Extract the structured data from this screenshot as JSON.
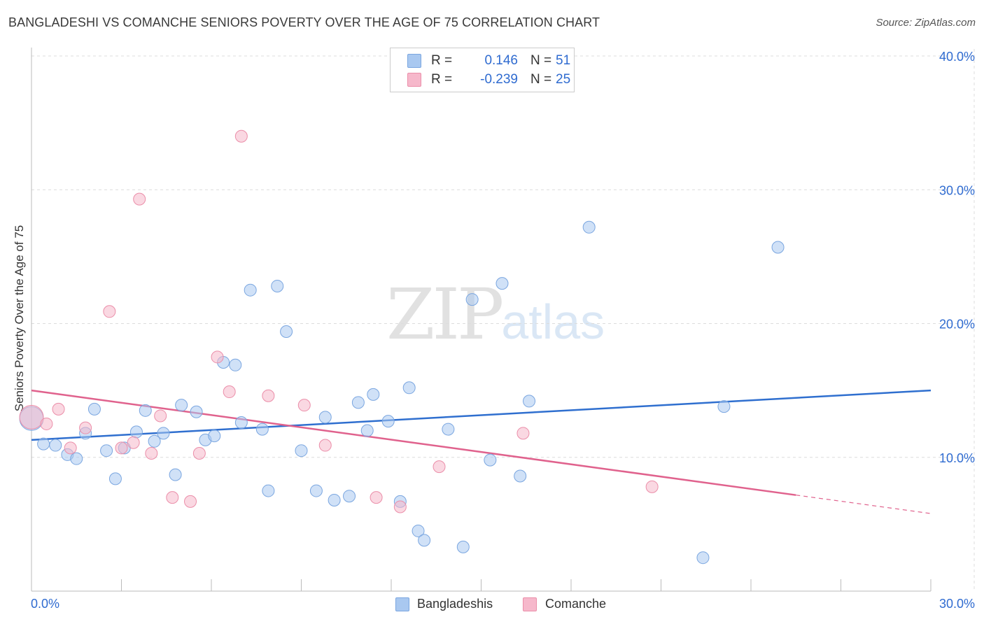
{
  "title": "BANGLADESHI VS COMANCHE SENIORS POVERTY OVER THE AGE OF 75 CORRELATION CHART",
  "source": "Source: ZipAtlas.com",
  "watermark": {
    "zip": "ZIP",
    "atlas": "atlas"
  },
  "stats": [
    {
      "r_label": "R =",
      "r_value": "0.146",
      "n_label": "N =",
      "n_value": "51",
      "color": "#a9c8f0"
    },
    {
      "r_label": "R =",
      "r_value": "-0.239",
      "n_label": "N =",
      "n_value": "25",
      "color": "#f6b8cb"
    }
  ],
  "legend": [
    {
      "label": "Bangladeshis",
      "color": "#a9c8f0"
    },
    {
      "label": "Comanche",
      "color": "#f6b8cb"
    }
  ],
  "chart_data": {
    "type": "scatter",
    "title": "BANGLADESHI VS COMANCHE SENIORS POVERTY OVER THE AGE OF 75 CORRELATION CHART",
    "xlabel": "",
    "ylabel": "Seniors Poverty Over the Age of 75",
    "xlim": [
      0,
      30
    ],
    "ylim": [
      0,
      40
    ],
    "x_tick_labels": [
      "0.0%",
      "30.0%"
    ],
    "y_ticks": [
      10,
      20,
      30,
      40
    ],
    "y_tick_labels": [
      "10.0%",
      "20.0%",
      "30.0%",
      "40.0%"
    ],
    "grid": true,
    "series": [
      {
        "name": "Bangladeshis",
        "color": "#a9c8f0",
        "stroke": "#7aa6e0",
        "line_color": "#2f6fcf",
        "trend": {
          "x0": 0,
          "y0": 11.3,
          "x1": 30,
          "y1": 15.0,
          "dash_from": null
        },
        "points": [
          [
            0.0,
            12.9,
            3
          ],
          [
            0.4,
            11.0,
            1
          ],
          [
            0.8,
            10.9,
            1
          ],
          [
            1.2,
            10.2,
            1
          ],
          [
            1.5,
            9.9,
            1
          ],
          [
            1.8,
            11.8,
            1
          ],
          [
            2.1,
            13.6,
            1
          ],
          [
            2.5,
            10.5,
            1
          ],
          [
            2.8,
            8.4,
            1
          ],
          [
            3.1,
            10.7,
            1
          ],
          [
            3.5,
            11.9,
            1
          ],
          [
            3.8,
            13.5,
            1
          ],
          [
            4.1,
            11.2,
            1
          ],
          [
            4.4,
            11.8,
            1
          ],
          [
            4.8,
            8.7,
            1
          ],
          [
            5.0,
            13.9,
            1
          ],
          [
            5.5,
            13.4,
            1
          ],
          [
            5.8,
            11.3,
            1
          ],
          [
            6.1,
            11.6,
            1
          ],
          [
            6.4,
            17.1,
            1
          ],
          [
            6.8,
            16.9,
            1
          ],
          [
            7.0,
            12.6,
            1
          ],
          [
            7.3,
            22.5,
            1
          ],
          [
            7.7,
            12.1,
            1
          ],
          [
            7.9,
            7.5,
            1
          ],
          [
            8.2,
            22.8,
            1
          ],
          [
            8.5,
            19.4,
            1
          ],
          [
            9.0,
            10.5,
            1
          ],
          [
            9.5,
            7.5,
            1
          ],
          [
            9.8,
            13.0,
            1
          ],
          [
            10.1,
            6.8,
            1
          ],
          [
            10.6,
            7.1,
            1
          ],
          [
            10.9,
            14.1,
            1
          ],
          [
            11.2,
            12.0,
            1
          ],
          [
            11.4,
            14.7,
            1
          ],
          [
            11.9,
            12.7,
            1
          ],
          [
            12.3,
            6.7,
            1
          ],
          [
            12.6,
            15.2,
            1
          ],
          [
            12.9,
            4.5,
            1
          ],
          [
            13.1,
            3.8,
            1
          ],
          [
            13.9,
            12.1,
            1
          ],
          [
            14.4,
            3.3,
            1
          ],
          [
            14.7,
            21.8,
            1
          ],
          [
            15.3,
            9.8,
            1
          ],
          [
            15.7,
            23.0,
            1
          ],
          [
            16.3,
            8.6,
            1
          ],
          [
            16.6,
            14.2,
            1
          ],
          [
            18.6,
            27.2,
            1
          ],
          [
            22.4,
            2.5,
            1
          ],
          [
            23.1,
            13.8,
            1
          ],
          [
            24.9,
            25.7,
            1
          ]
        ]
      },
      {
        "name": "Comanche",
        "color": "#f6b8cb",
        "stroke": "#eb8ea9",
        "line_color": "#e0628d",
        "trend": {
          "x0": 0,
          "y0": 15.0,
          "x1": 30,
          "y1": 5.8,
          "dash_from": 25.5
        },
        "points": [
          [
            0.0,
            13.0,
            3
          ],
          [
            0.5,
            12.5,
            1
          ],
          [
            0.9,
            13.6,
            1
          ],
          [
            1.3,
            10.7,
            1
          ],
          [
            1.8,
            12.2,
            1
          ],
          [
            2.6,
            20.9,
            1
          ],
          [
            3.0,
            10.7,
            1
          ],
          [
            3.4,
            11.1,
            1
          ],
          [
            3.6,
            29.3,
            1
          ],
          [
            4.0,
            10.3,
            1
          ],
          [
            4.3,
            13.1,
            1
          ],
          [
            4.7,
            7.0,
            1
          ],
          [
            5.3,
            6.7,
            1
          ],
          [
            5.6,
            10.3,
            1
          ],
          [
            6.2,
            17.5,
            1
          ],
          [
            6.6,
            14.9,
            1
          ],
          [
            7.0,
            34.0,
            1
          ],
          [
            7.9,
            14.6,
            1
          ],
          [
            9.1,
            13.9,
            1
          ],
          [
            9.8,
            10.9,
            1
          ],
          [
            11.5,
            7.0,
            1
          ],
          [
            12.3,
            6.3,
            1
          ],
          [
            13.6,
            9.3,
            1
          ],
          [
            16.4,
            11.8,
            1
          ],
          [
            20.7,
            7.8,
            1
          ]
        ]
      }
    ]
  }
}
